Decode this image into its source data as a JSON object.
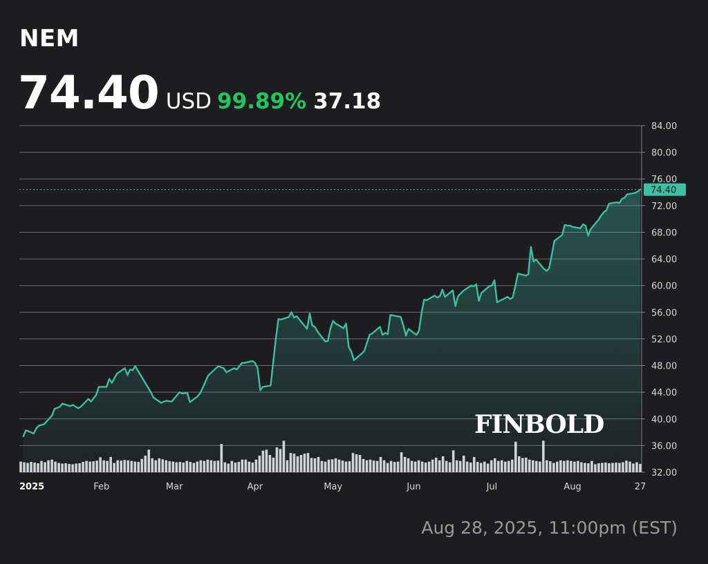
{
  "header": {
    "ticker": "NEM",
    "price": "74.40",
    "currency": "USD",
    "change_pct": "99.89%",
    "change_abs": "37.18",
    "change_color": "#22c55e"
  },
  "timestamp": "Aug 28, 2025, 11:00pm (EST)",
  "watermark": "FINBOLD",
  "colors": {
    "line": "#3dbfa4",
    "grid": "#8a8a8a",
    "volume": "#e6e6e6",
    "last_label_bg": "#3dbfa4"
  },
  "chart_data": {
    "type": "line",
    "title": "",
    "xlabel": "",
    "ylabel": "",
    "ylim": [
      32,
      84
    ],
    "y_ticks": [
      "84.00",
      "80.00",
      "76.00",
      "72.00",
      "68.00",
      "64.00",
      "60.00",
      "56.00",
      "52.00",
      "48.00",
      "44.00",
      "40.00",
      "36.00",
      "32.00"
    ],
    "x_ticks": [
      {
        "label": "2025",
        "date": "2025-01-01",
        "bold": true
      },
      {
        "label": "Feb",
        "date": "2025-02-01",
        "bold": false
      },
      {
        "label": "Mar",
        "date": "2025-03-01",
        "bold": false
      },
      {
        "label": "Apr",
        "date": "2025-04-01",
        "bold": false
      },
      {
        "label": "May",
        "date": "2025-05-01",
        "bold": false
      },
      {
        "label": "Jun",
        "date": "2025-06-01",
        "bold": false
      },
      {
        "label": "Jul",
        "date": "2025-07-01",
        "bold": false
      },
      {
        "label": "Aug",
        "date": "2025-08-01",
        "bold": false
      },
      {
        "label": "27",
        "date": "2025-08-27",
        "bold": false
      }
    ],
    "last_value_label": "74.40",
    "grid": true,
    "area_fill": true,
    "series": [
      {
        "values": [
          [
            "2025-01-02",
            37.4
          ],
          [
            "2025-01-03",
            38.3
          ],
          [
            "2025-01-06",
            37.8
          ],
          [
            "2025-01-07",
            38.6
          ],
          [
            "2025-01-08",
            39.0
          ],
          [
            "2025-01-10",
            39.2
          ],
          [
            "2025-01-13",
            40.5
          ],
          [
            "2025-01-14",
            41.5
          ],
          [
            "2025-01-16",
            41.8
          ],
          [
            "2025-01-17",
            42.3
          ],
          [
            "2025-01-20",
            41.9
          ],
          [
            "2025-01-21",
            42.1
          ],
          [
            "2025-01-23",
            41.6
          ],
          [
            "2025-01-24",
            41.8
          ],
          [
            "2025-01-27",
            43.0
          ],
          [
            "2025-01-28",
            42.6
          ],
          [
            "2025-01-30",
            43.6
          ],
          [
            "2025-01-31",
            44.8
          ],
          [
            "2025-02-03",
            44.8
          ],
          [
            "2025-02-04",
            46.0
          ],
          [
            "2025-02-05",
            45.4
          ],
          [
            "2025-02-07",
            46.8
          ],
          [
            "2025-02-10",
            47.6
          ],
          [
            "2025-02-11",
            46.6
          ],
          [
            "2025-02-12",
            47.4
          ],
          [
            "2025-02-13",
            47.3
          ],
          [
            "2025-02-14",
            47.9
          ],
          [
            "2025-02-18",
            45.3
          ],
          [
            "2025-02-20",
            44.0
          ],
          [
            "2025-02-21",
            43.2
          ],
          [
            "2025-02-24",
            42.4
          ],
          [
            "2025-02-25",
            42.6
          ],
          [
            "2025-02-26",
            42.7
          ],
          [
            "2025-02-28",
            42.6
          ],
          [
            "2025-03-03",
            44.0
          ],
          [
            "2025-03-04",
            43.8
          ],
          [
            "2025-03-06",
            43.9
          ],
          [
            "2025-03-07",
            42.5
          ],
          [
            "2025-03-10",
            43.4
          ],
          [
            "2025-03-11",
            43.9
          ],
          [
            "2025-03-13",
            45.6
          ],
          [
            "2025-03-14",
            46.5
          ],
          [
            "2025-03-17",
            47.6
          ],
          [
            "2025-03-18",
            47.9
          ],
          [
            "2025-03-20",
            47.6
          ],
          [
            "2025-03-21",
            47.0
          ],
          [
            "2025-03-24",
            47.6
          ],
          [
            "2025-03-25",
            47.4
          ],
          [
            "2025-03-27",
            48.4
          ],
          [
            "2025-03-28",
            48.4
          ],
          [
            "2025-03-31",
            48.7
          ],
          [
            "2025-04-01",
            48.4
          ],
          [
            "2025-04-02",
            47.6
          ],
          [
            "2025-04-03",
            44.3
          ],
          [
            "2025-04-04",
            44.8
          ],
          [
            "2025-04-07",
            45.0
          ],
          [
            "2025-04-08",
            48.5
          ],
          [
            "2025-04-09",
            52.0
          ],
          [
            "2025-04-10",
            55.0
          ],
          [
            "2025-04-11",
            54.9
          ],
          [
            "2025-04-14",
            55.3
          ],
          [
            "2025-04-15",
            56.0
          ],
          [
            "2025-04-16",
            55.2
          ],
          [
            "2025-04-17",
            55.4
          ],
          [
            "2025-04-21",
            53.5
          ],
          [
            "2025-04-22",
            55.8
          ],
          [
            "2025-04-23",
            54.0
          ],
          [
            "2025-04-24",
            53.8
          ],
          [
            "2025-04-25",
            53.1
          ],
          [
            "2025-04-28",
            51.6
          ],
          [
            "2025-04-29",
            51.7
          ],
          [
            "2025-04-30",
            53.6
          ],
          [
            "2025-05-01",
            54.7
          ],
          [
            "2025-05-02",
            54.3
          ],
          [
            "2025-05-05",
            53.6
          ],
          [
            "2025-05-06",
            54.3
          ],
          [
            "2025-05-07",
            50.8
          ],
          [
            "2025-05-08",
            50.1
          ],
          [
            "2025-05-09",
            48.8
          ],
          [
            "2025-05-12",
            49.8
          ],
          [
            "2025-05-13",
            50.2
          ],
          [
            "2025-05-14",
            51.4
          ],
          [
            "2025-05-15",
            52.6
          ],
          [
            "2025-05-16",
            52.8
          ],
          [
            "2025-05-19",
            53.8
          ],
          [
            "2025-05-20",
            52.6
          ],
          [
            "2025-05-21",
            52.9
          ],
          [
            "2025-05-22",
            52.7
          ],
          [
            "2025-05-23",
            55.6
          ],
          [
            "2025-05-27",
            55.3
          ],
          [
            "2025-05-28",
            54.0
          ],
          [
            "2025-05-29",
            52.5
          ],
          [
            "2025-05-30",
            53.5
          ],
          [
            "2025-06-02",
            52.6
          ],
          [
            "2025-06-03",
            53.2
          ],
          [
            "2025-06-04",
            56.0
          ],
          [
            "2025-06-05",
            57.9
          ],
          [
            "2025-06-06",
            57.8
          ],
          [
            "2025-06-09",
            58.5
          ],
          [
            "2025-06-10",
            58.2
          ],
          [
            "2025-06-11",
            58.4
          ],
          [
            "2025-06-12",
            59.4
          ],
          [
            "2025-06-13",
            58.3
          ],
          [
            "2025-06-16",
            59.3
          ],
          [
            "2025-06-17",
            56.9
          ],
          [
            "2025-06-18",
            58.4
          ],
          [
            "2025-06-20",
            59.2
          ],
          [
            "2025-06-23",
            60.0
          ],
          [
            "2025-06-24",
            59.9
          ],
          [
            "2025-06-25",
            60.2
          ],
          [
            "2025-06-26",
            57.7
          ],
          [
            "2025-06-27",
            58.9
          ],
          [
            "2025-06-30",
            59.9
          ],
          [
            "2025-07-01",
            60.0
          ],
          [
            "2025-07-02",
            60.8
          ],
          [
            "2025-07-03",
            57.5
          ],
          [
            "2025-07-07",
            58.3
          ],
          [
            "2025-07-08",
            58.0
          ],
          [
            "2025-07-09",
            58.2
          ],
          [
            "2025-07-10",
            59.9
          ],
          [
            "2025-07-11",
            61.8
          ],
          [
            "2025-07-14",
            61.5
          ],
          [
            "2025-07-15",
            61.7
          ],
          [
            "2025-07-16",
            65.8
          ],
          [
            "2025-07-17",
            63.6
          ],
          [
            "2025-07-18",
            63.9
          ],
          [
            "2025-07-21",
            62.5
          ],
          [
            "2025-07-22",
            62.2
          ],
          [
            "2025-07-23",
            62.6
          ],
          [
            "2025-07-24",
            64.6
          ],
          [
            "2025-07-25",
            66.7
          ],
          [
            "2025-07-28",
            67.6
          ],
          [
            "2025-07-29",
            69.1
          ],
          [
            "2025-07-30",
            69.0
          ],
          [
            "2025-07-31",
            69.0
          ],
          [
            "2025-08-01",
            68.8
          ],
          [
            "2025-08-04",
            68.6
          ],
          [
            "2025-08-05",
            69.2
          ],
          [
            "2025-08-06",
            69.0
          ],
          [
            "2025-08-07",
            67.5
          ],
          [
            "2025-08-08",
            68.5
          ],
          [
            "2025-08-11",
            69.9
          ],
          [
            "2025-08-12",
            70.5
          ],
          [
            "2025-08-13",
            71.0
          ],
          [
            "2025-08-14",
            71.3
          ],
          [
            "2025-08-15",
            72.3
          ],
          [
            "2025-08-18",
            72.5
          ],
          [
            "2025-08-19",
            72.4
          ],
          [
            "2025-08-20",
            73.0
          ],
          [
            "2025-08-21",
            73.2
          ],
          [
            "2025-08-22",
            73.7
          ],
          [
            "2025-08-25",
            73.9
          ],
          [
            "2025-08-26",
            74.1
          ],
          [
            "2025-08-27",
            74.4
          ]
        ]
      }
    ],
    "volume": [
      3.2,
      3.0,
      2.8,
      3.1,
      2.9,
      2.7,
      3.4,
      3.0,
      3.6,
      3.8,
      3.2,
      2.8,
      2.6,
      2.7,
      2.5,
      2.4,
      2.6,
      2.7,
      3.1,
      3.4,
      3.2,
      3.3,
      3.5,
      4.5,
      3.6,
      3.4,
      4.6,
      2.8,
      3.6,
      3.5,
      3.7,
      3.6,
      3.4,
      3.2,
      3.1,
      4.0,
      5.0,
      6.8,
      4.2,
      3.6,
      4.2,
      3.9,
      3.6,
      3.3,
      3.2,
      3.0,
      3.1,
      2.9,
      3.4,
      3.1,
      2.8,
      3.2,
      3.6,
      3.4,
      3.8,
      3.6,
      3.4,
      3.5,
      8.5,
      3.0,
      2.6,
      3.4,
      2.9,
      3.1,
      3.8,
      3.8,
      3.2,
      2.9,
      3.8,
      5.0,
      6.5,
      6.8,
      5.2,
      4.4,
      7.5,
      7.0,
      9.5,
      3.6,
      5.8,
      5.6,
      4.8,
      5.2,
      5.6,
      5.8,
      4.3,
      4.2,
      4.6,
      3.4,
      3.2,
      3.8,
      3.9,
      4.2,
      3.8,
      3.5,
      3.2,
      3.3,
      5.8,
      5.4,
      5.2,
      4.0,
      3.6,
      3.8,
      3.5,
      3.4,
      4.6,
      3.6,
      2.8,
      3.4,
      3.1,
      3.2,
      6.0,
      4.6,
      4.2,
      3.4,
      3.2,
      3.6,
      3.2,
      2.9,
      3.2,
      3.8,
      4.4,
      3.6,
      4.8,
      3.4,
      3.0,
      6.6,
      3.6,
      3.4,
      5.0,
      3.2,
      2.9,
      4.6,
      3.1,
      2.8,
      3.2,
      2.6,
      3.6,
      4.2,
      3.4,
      3.6,
      3.2,
      3.4,
      3.8,
      9.2,
      4.8,
      4.3,
      4.4,
      3.8,
      3.6,
      3.4,
      3.2,
      9.5,
      3.6,
      3.3,
      2.8,
      3.2,
      3.6,
      3.4,
      3.6,
      3.4,
      3.2,
      3.4,
      3.0,
      2.8,
      2.7,
      3.4,
      2.4,
      2.7,
      2.8,
      2.9,
      2.7,
      2.8,
      2.9,
      2.8,
      3.0,
      3.5,
      3.2,
      2.6,
      3.0,
      2.5
    ]
  }
}
